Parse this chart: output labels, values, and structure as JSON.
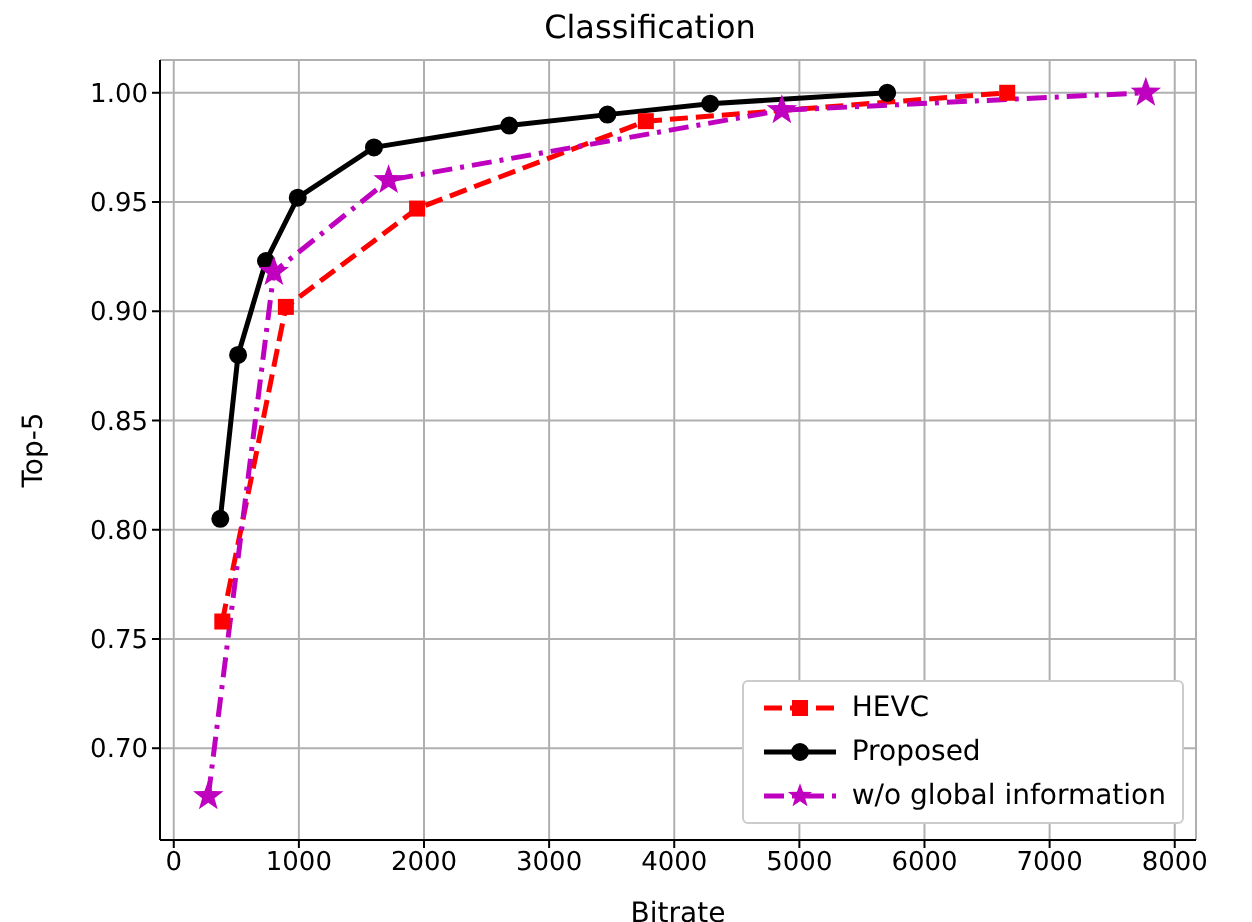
{
  "chart_data": {
    "type": "line",
    "title": "Classification",
    "xlabel": "Bitrate",
    "ylabel": "Top-5",
    "xlim": [
      -110,
      8170
    ],
    "xticks": [
      0,
      1000,
      2000,
      3000,
      4000,
      5000,
      6000,
      7000,
      8000
    ],
    "ylim": [
      0.658,
      1.015
    ],
    "yticks": [
      {
        "value": 0.7,
        "label": "0.70"
      },
      {
        "value": 0.75,
        "label": "0.75"
      },
      {
        "value": 0.8,
        "label": "0.80"
      },
      {
        "value": 0.85,
        "label": "0.85"
      },
      {
        "value": 0.9,
        "label": "0.90"
      },
      {
        "value": 0.95,
        "label": "0.95"
      },
      {
        "value": 1.0,
        "label": "1.00"
      }
    ],
    "grid": true,
    "legend": "bottom right",
    "series": [
      {
        "name": "HEVC",
        "color": "#ff0000",
        "marker": "square",
        "line_style": "dashed",
        "x": [
          388,
          896,
          1945,
          3773,
          6661
        ],
        "values": [
          0.758,
          0.902,
          0.947,
          0.987,
          1.0
        ]
      },
      {
        "name": "Proposed",
        "color": "#000000",
        "marker": "circle",
        "line_style": "solid",
        "x": [
          372,
          514,
          737,
          991,
          1600,
          2681,
          3466,
          4287,
          5702
        ],
        "values": [
          0.805,
          0.88,
          0.923,
          0.952,
          0.975,
          0.985,
          0.99,
          0.995,
          1.0
        ]
      },
      {
        "name": "w/o global information",
        "color": "#bf00bf",
        "marker": "star",
        "line_style": "dashdot",
        "x": [
          276,
          800,
          1717,
          4860,
          7769
        ],
        "values": [
          0.678,
          0.918,
          0.96,
          0.992,
          1.0
        ]
      }
    ]
  }
}
